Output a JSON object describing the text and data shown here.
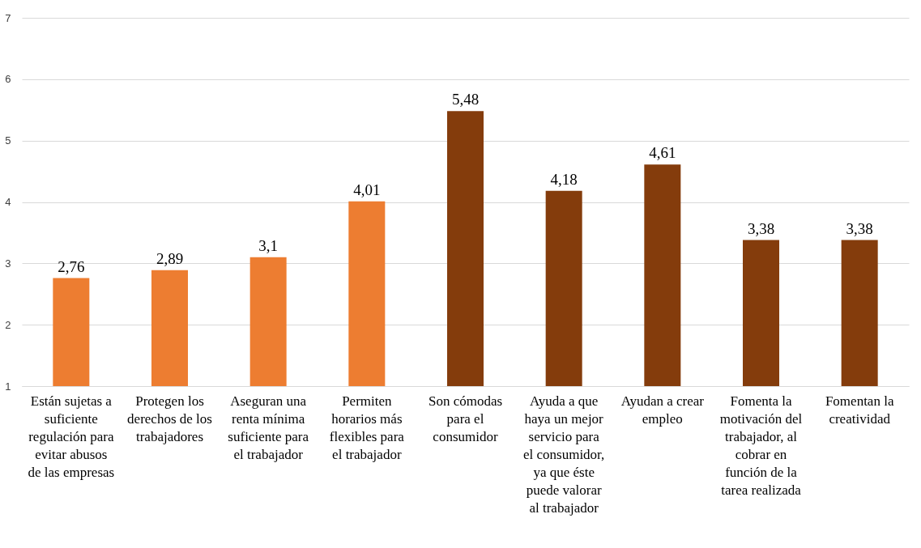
{
  "chart_data": {
    "type": "bar",
    "categories": [
      "Están sujetas a suficiente regulación para evitar abusos de las empresas",
      "Protegen los derechos de los trabajadores",
      "Aseguran una renta mínima suficiente para el trabajador",
      "Permiten horarios más flexibles para el trabajador",
      "Son cómodas para el consumidor",
      "Ayuda a que haya un mejor servicio para el consumidor, ya que éste puede valorar al trabajador",
      "Ayudan a crear empleo",
      "Fomenta la motivación del trabajador, al cobrar en función de la tarea realizada",
      "Fomentan la creatividad"
    ],
    "values": [
      2.76,
      2.89,
      3.1,
      4.01,
      5.48,
      4.18,
      4.61,
      3.38,
      3.38
    ],
    "colors": [
      "#ed7d31",
      "#ed7d31",
      "#ed7d31",
      "#ed7d31",
      "#843c0c",
      "#843c0c",
      "#843c0c",
      "#843c0c",
      "#843c0c"
    ],
    "value_labels": [
      "2,76",
      "2,89",
      "3,1",
      "4,01",
      "5,48",
      "4,18",
      "4,61",
      "3,38",
      "3,38"
    ],
    "ylim": [
      1,
      7
    ],
    "yticks": [
      1,
      2,
      3,
      4,
      5,
      6,
      7
    ],
    "grid": "y"
  }
}
